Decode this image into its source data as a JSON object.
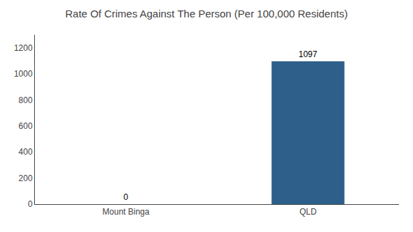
{
  "chart_data": {
    "type": "bar",
    "title": "Rate Of Crimes Against The Person (Per 100,000 Residents)",
    "categories": [
      "Mount Binga",
      "QLD"
    ],
    "values": [
      0,
      1097
    ],
    "color": "#2e5f8a",
    "ylim": [
      0,
      1300
    ],
    "yticks": [
      0,
      200,
      400,
      600,
      800,
      1000,
      1200
    ],
    "grid": false,
    "data_labels": true
  }
}
